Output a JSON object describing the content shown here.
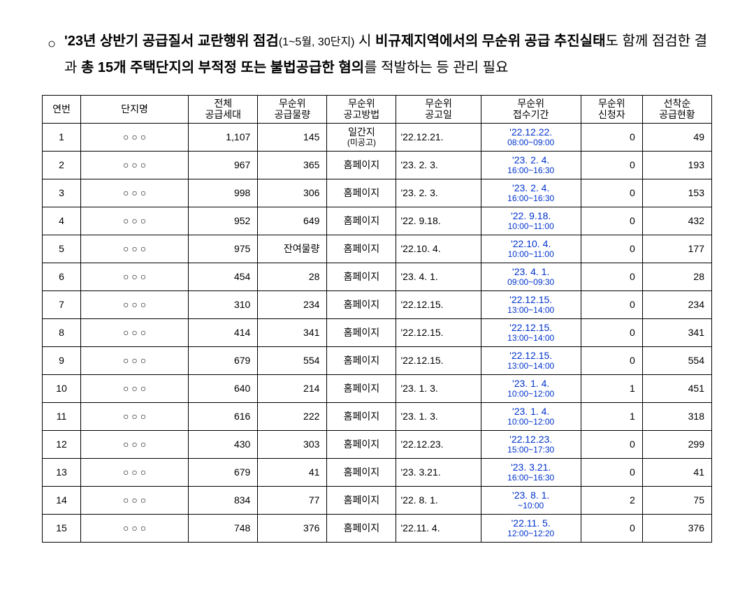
{
  "intro": {
    "bullet": "○",
    "part1_bold": "'23년 상반기 공급질서 교란행위 점검",
    "part1_small": "(1~5월, 30단지)",
    "part2": " 시 ",
    "part3_bold": "비규제지역에서의 무순위 공급 추진실태",
    "part4": "도 함께 점검한 결과 ",
    "part5_bold": "총 15개 주택단지의 부적정 또는 불법공급한 혐의",
    "part6": "를 적발하는 등 관리 필요"
  },
  "headers": {
    "num": "연번",
    "name": "단지명",
    "total_line1": "전체",
    "total_line2": "공급세대",
    "vol_line1": "무순위",
    "vol_line2": "공급물량",
    "method_line1": "무순위",
    "method_line2": "공고방법",
    "date_line1": "무순위",
    "date_line2": "공고일",
    "period_line1": "무순위",
    "period_line2": "접수기간",
    "apply_line1": "무순위",
    "apply_line2": "신청자",
    "status_line1": "선착순",
    "status_line2": "공급현황"
  },
  "rows": [
    {
      "num": "1",
      "name": "○ ○ ○",
      "total": "1,107",
      "vol": "145",
      "method1": "일간지",
      "method2": "(미공고)",
      "date": "'22.12.21.",
      "pdate": "'22.12.22.",
      "ptime": "08:00~09:00",
      "apply": "0",
      "status": "49"
    },
    {
      "num": "2",
      "name": "○ ○ ○",
      "total": "967",
      "vol": "365",
      "method1": "홈페이지",
      "method2": "",
      "date": "'23. 2. 3.",
      "pdate": "'23. 2. 4.",
      "ptime": "16:00~16:30",
      "apply": "0",
      "status": "193"
    },
    {
      "num": "3",
      "name": "○ ○ ○",
      "total": "998",
      "vol": "306",
      "method1": "홈페이지",
      "method2": "",
      "date": "'23. 2. 3.",
      "pdate": "'23. 2. 4.",
      "ptime": "16:00~16:30",
      "apply": "0",
      "status": "153"
    },
    {
      "num": "4",
      "name": "○ ○ ○",
      "total": "952",
      "vol": "649",
      "method1": "홈페이지",
      "method2": "",
      "date": "'22. 9.18.",
      "pdate": "'22. 9.18.",
      "ptime": "10:00~11:00",
      "apply": "0",
      "status": "432"
    },
    {
      "num": "5",
      "name": "○ ○ ○",
      "total": "975",
      "vol": "잔여물량",
      "method1": "홈페이지",
      "method2": "",
      "date": "'22.10. 4.",
      "pdate": "'22.10. 4.",
      "ptime": "10:00~11:00",
      "apply": "0",
      "status": "177"
    },
    {
      "num": "6",
      "name": "○ ○ ○",
      "total": "454",
      "vol": "28",
      "method1": "홈페이지",
      "method2": "",
      "date": "'23. 4. 1.",
      "pdate": "'23. 4. 1.",
      "ptime": "09:00~09:30",
      "apply": "0",
      "status": "28"
    },
    {
      "num": "7",
      "name": "○ ○ ○",
      "total": "310",
      "vol": "234",
      "method1": "홈페이지",
      "method2": "",
      "date": "'22.12.15.",
      "pdate": "'22.12.15.",
      "ptime": "13:00~14:00",
      "apply": "0",
      "status": "234"
    },
    {
      "num": "8",
      "name": "○ ○ ○",
      "total": "414",
      "vol": "341",
      "method1": "홈페이지",
      "method2": "",
      "date": "'22.12.15.",
      "pdate": "'22.12.15.",
      "ptime": "13:00~14:00",
      "apply": "0",
      "status": "341"
    },
    {
      "num": "9",
      "name": "○ ○ ○",
      "total": "679",
      "vol": "554",
      "method1": "홈페이지",
      "method2": "",
      "date": "'22.12.15.",
      "pdate": "'22.12.15.",
      "ptime": "13:00~14:00",
      "apply": "0",
      "status": "554"
    },
    {
      "num": "10",
      "name": "○ ○ ○",
      "total": "640",
      "vol": "214",
      "method1": "홈페이지",
      "method2": "",
      "date": "'23. 1. 3.",
      "pdate": "'23. 1. 4.",
      "ptime": "10:00~12:00",
      "apply": "1",
      "status": "451"
    },
    {
      "num": "11",
      "name": "○ ○ ○",
      "total": "616",
      "vol": "222",
      "method1": "홈페이지",
      "method2": "",
      "date": "'23. 1. 3.",
      "pdate": "'23. 1. 4.",
      "ptime": "10:00~12:00",
      "apply": "1",
      "status": "318"
    },
    {
      "num": "12",
      "name": "○ ○ ○",
      "total": "430",
      "vol": "303",
      "method1": "홈페이지",
      "method2": "",
      "date": "'22.12.23.",
      "pdate": "'22.12.23.",
      "ptime": "15:00~17:30",
      "apply": "0",
      "status": "299"
    },
    {
      "num": "13",
      "name": "○ ○ ○",
      "total": "679",
      "vol": "41",
      "method1": "홈페이지",
      "method2": "",
      "date": "'23. 3.21.",
      "pdate": "'23. 3.21.",
      "ptime": "16:00~16:30",
      "apply": "0",
      "status": "41"
    },
    {
      "num": "14",
      "name": "○ ○ ○",
      "total": "834",
      "vol": "77",
      "method1": "홈페이지",
      "method2": "",
      "date": "'22. 8. 1.",
      "pdate": "'23. 8. 1.",
      "ptime": "~10:00",
      "apply": "2",
      "status": "75"
    },
    {
      "num": "15",
      "name": "○ ○ ○",
      "total": "748",
      "vol": "376",
      "method1": "홈페이지",
      "method2": "",
      "date": "'22.11. 4.",
      "pdate": "'22.11. 5.",
      "ptime": "12:00~12:20",
      "apply": "0",
      "status": "376"
    }
  ]
}
